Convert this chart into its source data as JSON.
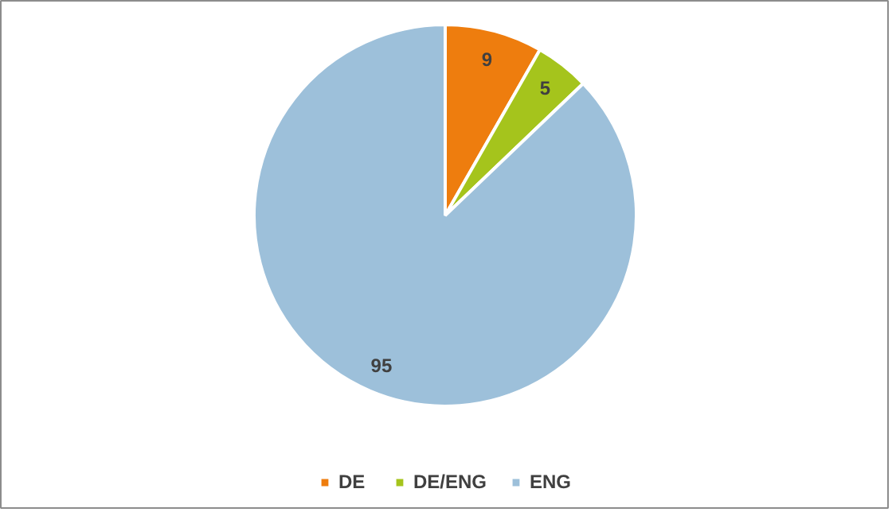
{
  "chart_data": {
    "type": "pie",
    "categories": [
      "DE",
      "DE/ENG",
      "ENG"
    ],
    "values": [
      9,
      5,
      95
    ],
    "colors": [
      "#ee7d0e",
      "#a5c41c",
      "#9dc0da"
    ],
    "data_labels": true,
    "legend": "bottom"
  }
}
